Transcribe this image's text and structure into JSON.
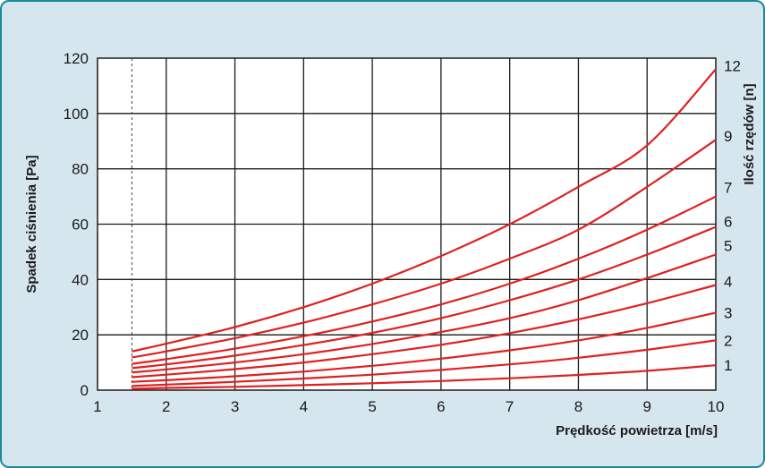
{
  "chart_data": {
    "type": "line",
    "title": "",
    "xlabel": "Prędkość  powietrza [m/s]",
    "ylabel": "Spadek  ciśnienia [Pa]",
    "right_label": "Ilość rzędów [n]",
    "xlim": [
      1,
      10
    ],
    "ylim": [
      0,
      120
    ],
    "x_ticks": [
      1,
      2,
      3,
      4,
      5,
      6,
      7,
      8,
      9,
      10
    ],
    "y_ticks": [
      0,
      20,
      40,
      60,
      80,
      100,
      120
    ],
    "grid": true,
    "min_velocity_marker": 1.5,
    "x": [
      1.5,
      2,
      3,
      4,
      5,
      6,
      7,
      8,
      9,
      10
    ],
    "series": [
      {
        "name": "1",
        "values": [
          0.5,
          0.8,
          1.2,
          1.8,
          2.5,
          3.3,
          4.3,
          5.5,
          7.0,
          9.0
        ]
      },
      {
        "name": "2",
        "values": [
          1.5,
          2.0,
          3.0,
          4.2,
          5.6,
          7.3,
          9.3,
          11.7,
          14.6,
          18.0
        ]
      },
      {
        "name": "3",
        "values": [
          3.0,
          3.6,
          5.0,
          6.7,
          8.8,
          11.4,
          14.4,
          18.0,
          22.5,
          28.0
        ]
      },
      {
        "name": "4",
        "values": [
          4.7,
          5.6,
          7.6,
          10.0,
          13.0,
          16.4,
          20.6,
          25.6,
          31.4,
          38.0
        ]
      },
      {
        "name": "5",
        "values": [
          6.4,
          7.5,
          10.0,
          13.0,
          16.7,
          21.0,
          26.0,
          32.5,
          40.5,
          49.0
        ]
      },
      {
        "name": "6",
        "values": [
          8.0,
          9.3,
          12.5,
          16.3,
          20.7,
          26.0,
          32.5,
          40.0,
          49.0,
          59.0
        ]
      },
      {
        "name": "7",
        "values": [
          9.5,
          11.2,
          15.0,
          19.5,
          24.8,
          31.0,
          38.5,
          47.5,
          58.0,
          70.0
        ]
      },
      {
        "name": "9",
        "values": [
          11.8,
          14.0,
          18.8,
          24.4,
          31.0,
          38.5,
          47.5,
          58.0,
          73.5,
          90.5
        ]
      },
      {
        "name": "12",
        "values": [
          14.0,
          16.8,
          22.8,
          30.0,
          38.5,
          48.5,
          60.0,
          73.5,
          88.5,
          116.0
        ]
      }
    ],
    "colors": {
      "line": "#e02020",
      "grid": "#1a1a1a",
      "background_plot": "#ffffff",
      "background_frame": "#d6e6ee",
      "border": "#1a8a96"
    }
  }
}
